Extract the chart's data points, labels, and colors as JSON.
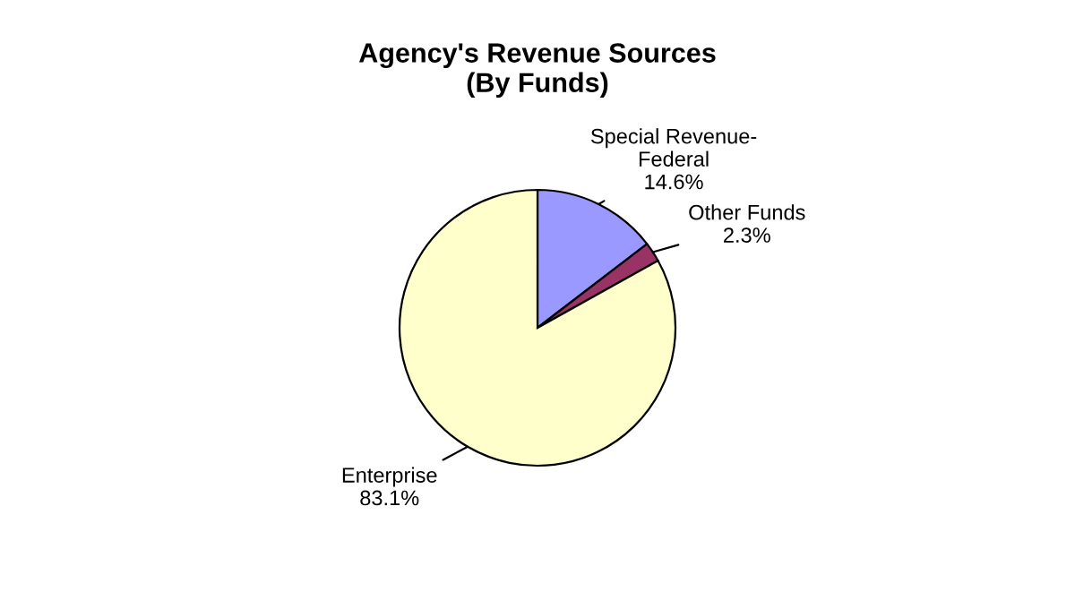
{
  "chart_data": {
    "type": "pie",
    "title": "Agency's Revenue Sources\n(By Funds)",
    "categories": [
      "Special Revenue-Federal",
      "Other Funds",
      "Enterprise"
    ],
    "values": [
      14.6,
      2.3,
      83.1
    ],
    "value_labels": [
      "14.6%",
      "2.3%",
      "83.1%"
    ],
    "colors": [
      "#9999ff",
      "#993366",
      "#ffffcc"
    ]
  }
}
